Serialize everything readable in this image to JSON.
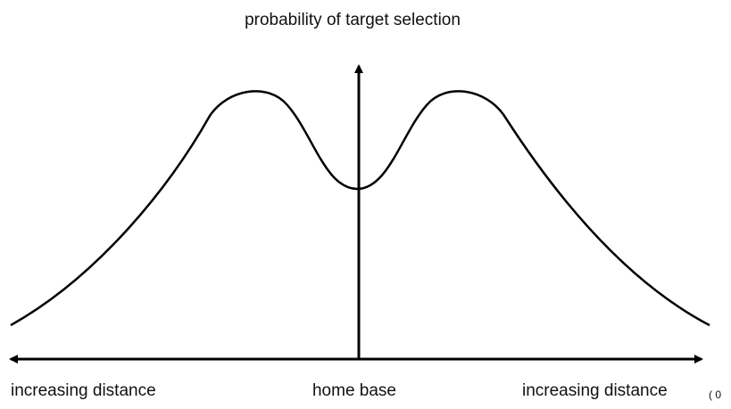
{
  "title": "probability of target selection",
  "axis_labels": {
    "left": "increasing distance",
    "center": "home base",
    "right": "increasing distance"
  },
  "corner_text": "( 0"
}
